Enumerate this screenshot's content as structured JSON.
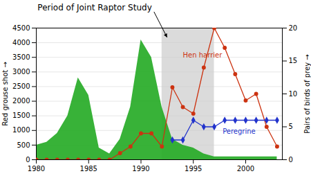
{
  "chart_data": {
    "type": "line",
    "title": "Period of Joint Raptor Study",
    "x": [
      1980,
      1981,
      1982,
      1983,
      1984,
      1985,
      1986,
      1987,
      1988,
      1989,
      1990,
      1991,
      1992,
      1993,
      1994,
      1995,
      1996,
      1997,
      1998,
      1999,
      2000,
      2001,
      2002,
      2003
    ],
    "series": [
      {
        "name": "Red grouse shot",
        "type": "area",
        "color": "#22aa22",
        "values": [
          500,
          600,
          900,
          1500,
          2800,
          2200,
          400,
          200,
          700,
          1800,
          4100,
          3500,
          1800,
          700,
          500,
          400,
          200,
          100,
          100,
          100,
          100,
          100,
          100,
          100
        ]
      },
      {
        "name": "Hen harrier",
        "type": "line",
        "color": "#cc3311",
        "marker": "circle",
        "axis": "y2",
        "values": [
          0,
          0,
          0,
          0,
          0,
          0,
          0,
          0,
          1,
          2,
          4,
          4,
          2,
          11,
          8,
          7,
          14,
          20,
          17,
          13,
          9,
          10,
          5,
          2
        ]
      },
      {
        "name": "Peregrine",
        "type": "line",
        "color": "#2233cc",
        "marker": "diamond",
        "axis": "y2",
        "values": [
          null,
          null,
          null,
          null,
          null,
          null,
          null,
          null,
          null,
          null,
          null,
          null,
          null,
          3,
          3,
          6,
          5,
          5,
          6,
          6,
          6,
          6,
          6,
          6
        ]
      }
    ],
    "xlim": [
      1980,
      2003.5
    ],
    "xticks": [
      1980,
      1985,
      1990,
      1995,
      2000
    ],
    "ylim": [
      0,
      4500
    ],
    "yticks": [
      0,
      500,
      1000,
      1500,
      2000,
      2500,
      3000,
      3500,
      4000,
      4500
    ],
    "ylabel": "Red grouse shot",
    "y2lim": [
      0,
      20
    ],
    "y2ticks": [
      0,
      5,
      10,
      15,
      20
    ],
    "y2label": "Pairs of birds of prey",
    "grid": true,
    "shaded_period": {
      "x": [
        1992,
        1997
      ],
      "color": "#cccccc"
    },
    "annotations": [
      {
        "text": "Hen harrier",
        "x": 1994.0,
        "y": 15.5,
        "axis": "y2"
      },
      {
        "text": "Peregrine",
        "x": 1997.8,
        "y": 4.0,
        "axis": "y2"
      }
    ]
  }
}
